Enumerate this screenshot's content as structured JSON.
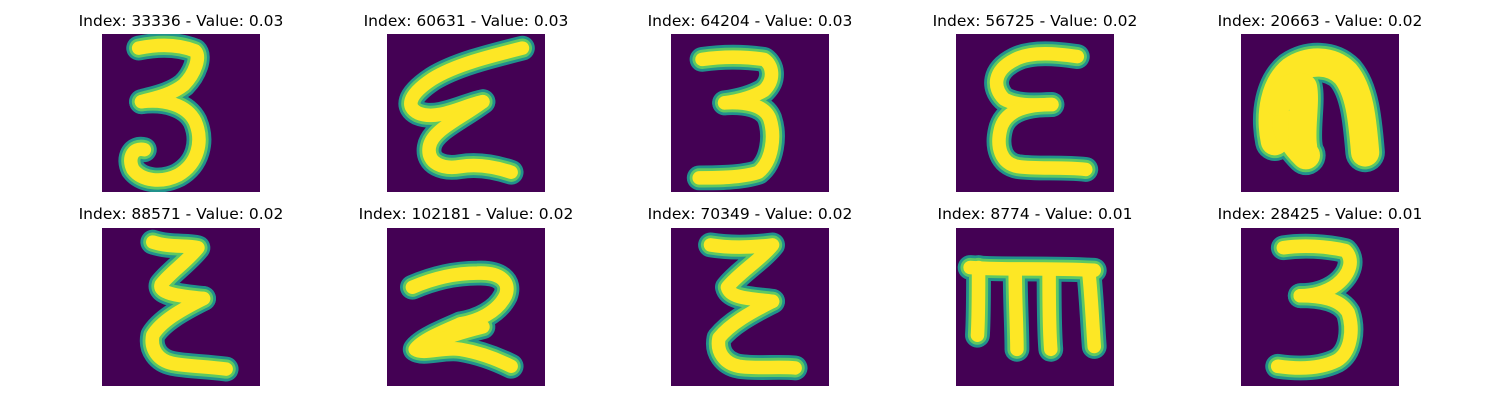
{
  "figure": {
    "panels": [
      {
        "title": "Index: 33336 - Value: 0.03",
        "glyph": "3-curly"
      },
      {
        "title": "Index: 60631 - Value: 0.03",
        "glyph": "epsilon-slanted"
      },
      {
        "title": "Index: 64204 - Value: 0.03",
        "glyph": "3-flat-top"
      },
      {
        "title": "Index: 56725 - Value: 0.02",
        "glyph": "epsilon-round"
      },
      {
        "title": "Index: 20663 - Value: 0.02",
        "glyph": "n-blob"
      },
      {
        "title": "Index: 88571 - Value: 0.02",
        "glyph": "epsilon-narrow"
      },
      {
        "title": "Index: 102181 - Value: 0.02",
        "glyph": "2-wide"
      },
      {
        "title": "Index: 70349 - Value: 0.02",
        "glyph": "epsilon-tall"
      },
      {
        "title": "Index: 8774 - Value: 0.01",
        "glyph": "m-block"
      },
      {
        "title": "Index: 28425 - Value: 0.01",
        "glyph": "3-plain"
      }
    ],
    "colors": {
      "background": "#440154",
      "stroke_edge": "#21918c",
      "stroke_mid": "#5ec962",
      "stroke_core": "#fde725"
    }
  }
}
